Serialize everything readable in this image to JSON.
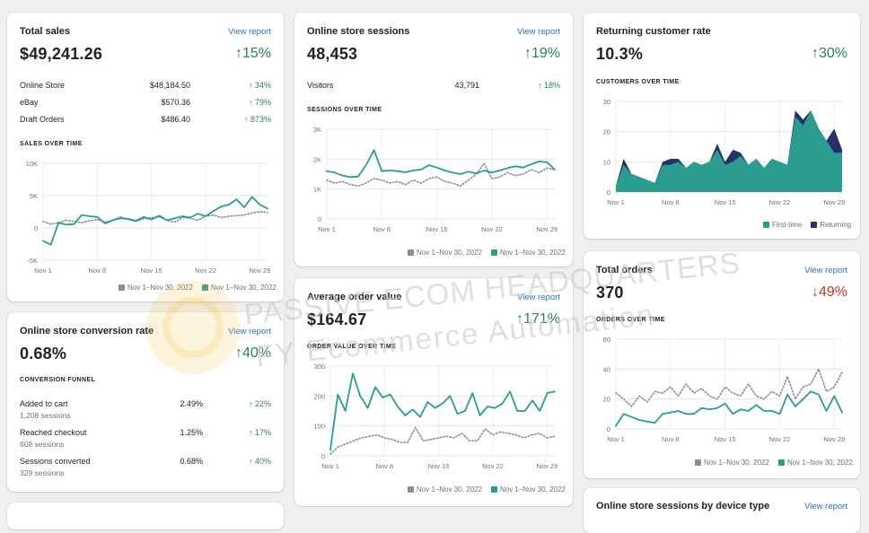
{
  "colors": {
    "teal": "#2a9d8f",
    "navy": "#27306b",
    "gray_dotted": "#8a8f94",
    "up": "#2e7d5b",
    "down": "#c03a2b",
    "link": "#2c6ecb"
  },
  "total_sales": {
    "title": "Total sales",
    "view_label": "View report",
    "value": "$49,241.26",
    "change": "↑15%",
    "rows": [
      {
        "label": "Online Store",
        "amount": "$48,184.50",
        "pct": "↑ 34%"
      },
      {
        "label": "eBay",
        "amount": "$570.36",
        "pct": "↑ 79%"
      },
      {
        "label": "Draft Orders",
        "amount": "$486.40",
        "pct": "↑ 873%"
      }
    ],
    "section": "SALES OVER TIME",
    "legend_prev": "Nov 1–Nov 30, 2022",
    "legend_cur": "Nov 1–Nov 30, 2022"
  },
  "sessions": {
    "title": "Online store sessions",
    "view_label": "View report",
    "value": "48,453",
    "change": "↑19%",
    "rows": [
      {
        "label": "Visitors",
        "amount": "43,791",
        "pct": "↑ 18%"
      }
    ],
    "section": "SESSIONS OVER TIME",
    "legend_prev": "Nov 1–Nov 30, 2022",
    "legend_cur": "Nov 1–Nov 30, 2022"
  },
  "returning": {
    "title": "Returning customer rate",
    "value": "10.3%",
    "change": "↑30%",
    "section": "CUSTOMERS OVER TIME",
    "legend_first": "First-time",
    "legend_returning": "Returning"
  },
  "conversion": {
    "title": "Online store conversion rate",
    "view_label": "View report",
    "value": "0.68%",
    "change": "↑40%",
    "section": "CONVERSION FUNNEL",
    "steps": [
      {
        "label": "Added to cart",
        "sessions": "1,208 sessions",
        "rate": "2.49%",
        "pct": "↑ 22%"
      },
      {
        "label": "Reached checkout",
        "sessions": "608 sessions",
        "rate": "1.25%",
        "pct": "↑ 17%"
      },
      {
        "label": "Sessions converted",
        "sessions": "329 sessions",
        "rate": "0.68%",
        "pct": "↑ 40%"
      }
    ]
  },
  "aov": {
    "title": "Average order value",
    "view_label": "View report",
    "value": "$164.67",
    "change": "↑171%",
    "section": "ORDER VALUE OVER TIME",
    "legend_prev": "Nov 1–Nov 30, 2022",
    "legend_cur": "Nov 1–Nov 30, 2022"
  },
  "orders": {
    "title": "Total orders",
    "view_label": "View report",
    "value": "370",
    "change": "↓49%",
    "section": "ORDERS OVER TIME",
    "legend_prev": "Nov 1–Nov 30, 2022",
    "legend_cur": "Nov 1–Nov 30, 2022"
  },
  "device": {
    "title": "Online store sessions by device type",
    "view_label": "View report"
  },
  "watermark": {
    "line1": "PASSIVE ECOM HEADQUARTERS",
    "line2": "FY Ecommerce Automation"
  },
  "chart_data": [
    {
      "id": "sales",
      "type": "line",
      "title": "SALES OVER TIME",
      "yticks": [
        "10K",
        "5K",
        "0",
        "-5K"
      ],
      "ytick_values": [
        10000,
        5000,
        0,
        -5000
      ],
      "ylim": [
        -5000,
        10000
      ],
      "xticks": [
        "Nov 1",
        "Nov 8",
        "Nov 15",
        "Nov 22",
        "Nov 29"
      ],
      "xlim": [
        1,
        30
      ],
      "series": [
        {
          "values": [
            -2000,
            -2600,
            800,
            500,
            600,
            2000,
            1800,
            1700,
            700,
            1200,
            1500,
            1400,
            1100,
            1700,
            1300,
            1900,
            1200,
            1500,
            1800,
            1600,
            2200,
            1800,
            2600,
            3300,
            3600,
            4400,
            3200,
            4800,
            3600,
            3000
          ]
        },
        {
          "style": "dotted",
          "values": [
            1000,
            600,
            800,
            1200,
            1000,
            800,
            1100,
            1300,
            900,
            1200,
            1700,
            1300,
            1000,
            1400,
            1600,
            1700,
            1200,
            900,
            1600,
            1500,
            1200,
            1800,
            2000,
            1600,
            1800,
            1900,
            2000,
            2300,
            2500,
            2400
          ]
        }
      ]
    },
    {
      "id": "sessions",
      "type": "line",
      "title": "SESSIONS OVER TIME",
      "yticks": [
        "3K",
        "2K",
        "1K",
        "0"
      ],
      "ytick_values": [
        3000,
        2000,
        1000,
        0
      ],
      "ylim": [
        0,
        3000
      ],
      "xticks": [
        "Nov 1",
        "Nov 8",
        "Nov 15",
        "Nov 22",
        "Nov 29"
      ],
      "xlim": [
        1,
        30
      ],
      "series": [
        {
          "values": [
            1600,
            1550,
            1450,
            1400,
            1420,
            1800,
            2300,
            1600,
            1620,
            1600,
            1560,
            1620,
            1650,
            1800,
            1720,
            1620,
            1550,
            1500,
            1580,
            1520,
            1620,
            1550,
            1620,
            1700,
            1760,
            1720,
            1830,
            1920,
            1900,
            1650
          ]
        },
        {
          "style": "dotted",
          "values": [
            1300,
            1200,
            1250,
            1150,
            1100,
            1200,
            1350,
            1300,
            1200,
            1250,
            1150,
            1300,
            1200,
            1350,
            1400,
            1250,
            1200,
            1100,
            1300,
            1500,
            1850,
            1350,
            1400,
            1550,
            1450,
            1500,
            1650,
            1550,
            1700,
            1650
          ]
        }
      ]
    },
    {
      "id": "customers",
      "type": "area",
      "title": "CUSTOMERS OVER TIME",
      "yticks": [
        "30",
        "20",
        "10",
        "0"
      ],
      "ytick_values": [
        30,
        20,
        10,
        0
      ],
      "ylim": [
        0,
        30
      ],
      "xticks": [
        "Nov 1",
        "Nov 8",
        "Nov 15",
        "Nov 22",
        "Nov 29"
      ],
      "xlim": [
        1,
        30
      ],
      "series": [
        {
          "name": "First-time",
          "values": [
            2,
            9,
            6,
            5,
            4,
            3,
            9,
            9,
            10,
            8,
            10,
            9,
            10,
            14,
            9,
            10,
            12,
            9,
            11,
            8,
            11,
            10,
            9,
            25,
            22,
            27,
            21,
            17,
            13,
            13
          ]
        },
        {
          "name": "Returning",
          "values": [
            2,
            11,
            6,
            5,
            4,
            3,
            10,
            11,
            11,
            8,
            10,
            9,
            10,
            16,
            10,
            14,
            13,
            9,
            11,
            8,
            11,
            10,
            9,
            27,
            24,
            27,
            21,
            17,
            21,
            14
          ]
        }
      ]
    },
    {
      "id": "aov",
      "type": "line",
      "title": "ORDER VALUE OVER TIME",
      "yticks": [
        "300",
        "200",
        "100",
        "0"
      ],
      "ytick_values": [
        300,
        200,
        100,
        0
      ],
      "ylim": [
        0,
        300
      ],
      "xticks": [
        "Nov 1",
        "Nov 8",
        "Nov 15",
        "Nov 22",
        "Nov 29"
      ],
      "xlim": [
        1,
        30
      ],
      "series": [
        {
          "values": [
            20,
            205,
            150,
            275,
            200,
            160,
            230,
            195,
            205,
            165,
            135,
            155,
            130,
            180,
            160,
            175,
            200,
            140,
            150,
            210,
            135,
            165,
            160,
            175,
            215,
            150,
            150,
            185,
            150,
            210,
            215
          ]
        },
        {
          "style": "dotted",
          "values": [
            5,
            30,
            40,
            50,
            60,
            65,
            70,
            60,
            55,
            45,
            45,
            95,
            50,
            55,
            60,
            65,
            60,
            75,
            50,
            50,
            90,
            70,
            80,
            75,
            70,
            60,
            70,
            75,
            60,
            65
          ]
        }
      ]
    },
    {
      "id": "orders",
      "type": "line",
      "title": "ORDERS OVER TIME",
      "yticks": [
        "60",
        "40",
        "20",
        "0"
      ],
      "ytick_values": [
        60,
        40,
        20,
        0
      ],
      "ylim": [
        0,
        60
      ],
      "xticks": [
        "Nov 1",
        "Nov 8",
        "Nov 15",
        "Nov 22",
        "Nov 29"
      ],
      "xlim": [
        1,
        30
      ],
      "series": [
        {
          "values": [
            2,
            10,
            8,
            6,
            5,
            4,
            10,
            11,
            12,
            10,
            10,
            14,
            13,
            14,
            17,
            10,
            13,
            12,
            16,
            12,
            12,
            10,
            23,
            15,
            20,
            25,
            23,
            12,
            22,
            11
          ]
        },
        {
          "style": "dotted",
          "values": [
            24,
            20,
            15,
            22,
            18,
            25,
            24,
            28,
            22,
            30,
            24,
            27,
            22,
            20,
            28,
            24,
            22,
            30,
            22,
            20,
            25,
            22,
            35,
            20,
            28,
            30,
            40,
            25,
            28,
            38
          ]
        }
      ]
    }
  ]
}
